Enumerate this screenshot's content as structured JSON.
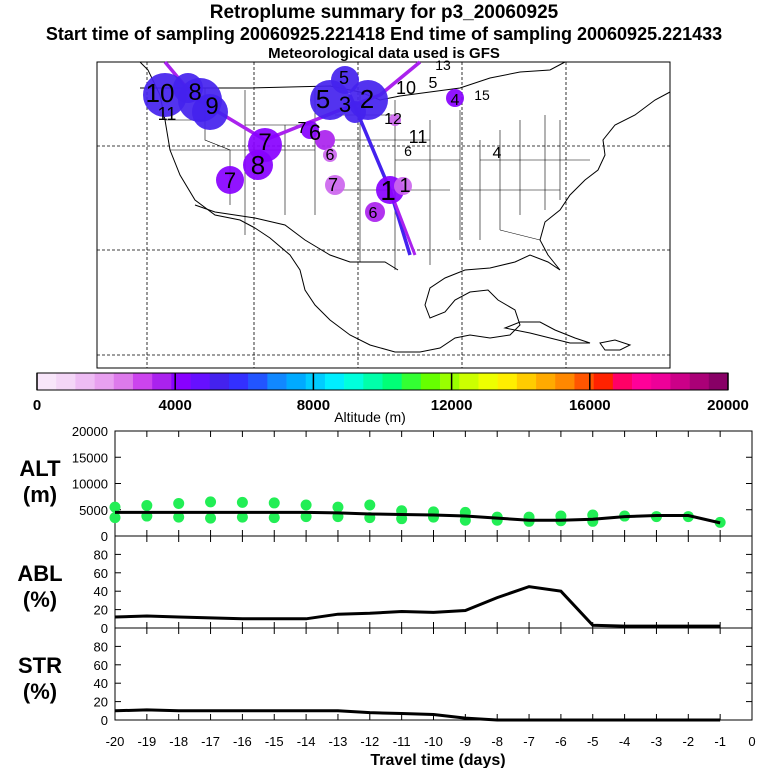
{
  "header": {
    "title": "Retroplume summary for p3_20060925",
    "sampling": "Start time of sampling 20060925.221418     End time of sampling 20060925.221433",
    "met": "Meteorological data used is GFS"
  },
  "colors": {
    "plume_purple": "#8800ff",
    "plume_blue": "#4422ee",
    "plume_violet": "#aa22ee",
    "plume_light": "#cc66ee",
    "alt_dots": "#22ee55",
    "line": "#000000"
  },
  "map": {
    "labels": [
      {
        "t": "10"
      },
      {
        "t": "8"
      },
      {
        "t": "9"
      },
      {
        "t": "11"
      },
      {
        "t": "7"
      },
      {
        "t": "6"
      },
      {
        "t": "8"
      },
      {
        "t": "7"
      },
      {
        "t": "7"
      },
      {
        "t": "6"
      },
      {
        "t": "7"
      },
      {
        "t": "5"
      },
      {
        "t": "5"
      },
      {
        "t": "3"
      },
      {
        "t": "2"
      },
      {
        "t": "10"
      },
      {
        "t": "5"
      },
      {
        "t": "13"
      },
      {
        "t": "4"
      },
      {
        "t": "1"
      },
      {
        "t": "12"
      },
      {
        "t": "11"
      },
      {
        "t": "6"
      },
      {
        "t": "4"
      },
      {
        "t": "1"
      },
      {
        "t": "15"
      },
      {
        "t": "6"
      }
    ]
  },
  "colorbar": {
    "ticks": [
      "0",
      "4000",
      "8000",
      "12000",
      "16000",
      "20000"
    ],
    "label": "Altitude (m)"
  },
  "chart_data": [
    {
      "type": "line",
      "name": "ALT",
      "ylabel": "ALT\n(m)",
      "ylim": [
        0,
        20000
      ],
      "yticks": [
        "0",
        "5000",
        "10000",
        "15000",
        "20000"
      ],
      "x": [
        -20,
        -19,
        -18,
        -17,
        -16,
        -15,
        -14,
        -13,
        -12,
        -11,
        -10,
        -9,
        -8,
        -7,
        -6,
        -5,
        -4,
        -3,
        -2,
        -1
      ],
      "values": [
        4500,
        4500,
        4500,
        4500,
        4500,
        4500,
        4500,
        4400,
        4200,
        4100,
        4000,
        3800,
        3400,
        3000,
        3000,
        3200,
        3700,
        3900,
        3900,
        2500
      ],
      "dots": [
        [
          -20,
          3500
        ],
        [
          -20,
          5500
        ],
        [
          -19,
          3800
        ],
        [
          -19,
          5800
        ],
        [
          -18,
          3600
        ],
        [
          -18,
          6200
        ],
        [
          -17,
          3400
        ],
        [
          -17,
          6500
        ],
        [
          -16,
          3600
        ],
        [
          -16,
          6400
        ],
        [
          -15,
          3500
        ],
        [
          -15,
          6300
        ],
        [
          -14,
          3700
        ],
        [
          -14,
          5900
        ],
        [
          -13,
          3700
        ],
        [
          -13,
          5500
        ],
        [
          -12,
          3500
        ],
        [
          -12,
          5900
        ],
        [
          -11,
          3300
        ],
        [
          -11,
          4800
        ],
        [
          -10,
          3600
        ],
        [
          -10,
          4600
        ],
        [
          -9,
          3000
        ],
        [
          -9,
          4500
        ],
        [
          -8,
          3000
        ],
        [
          -8,
          3600
        ],
        [
          -7,
          2800
        ],
        [
          -7,
          3600
        ],
        [
          -6,
          2900
        ],
        [
          -6,
          3800
        ],
        [
          -5,
          2800
        ],
        [
          -5,
          4000
        ],
        [
          -4,
          3800
        ],
        [
          -3,
          3700
        ],
        [
          -2,
          3700
        ],
        [
          -1,
          2600
        ]
      ]
    },
    {
      "type": "line",
      "name": "ABL",
      "ylabel": "ABL\n(%)",
      "ylim": [
        0,
        100
      ],
      "yticks": [
        "0",
        "20",
        "40",
        "60",
        "80"
      ],
      "x": [
        -20,
        -19,
        -18,
        -17,
        -16,
        -15,
        -14,
        -13,
        -12,
        -11,
        -10,
        -9,
        -8,
        -7,
        -6,
        -5,
        -4,
        -3,
        -2,
        -1
      ],
      "values": [
        12,
        13,
        12,
        11,
        10,
        10,
        10,
        15,
        16,
        18,
        17,
        19,
        33,
        45,
        40,
        3,
        2,
        2,
        2,
        2
      ]
    },
    {
      "type": "line",
      "name": "STR",
      "ylabel": "STR\n(%)",
      "ylim": [
        0,
        100
      ],
      "yticks": [
        "0",
        "20",
        "40",
        "60",
        "80"
      ],
      "x": [
        -20,
        -19,
        -18,
        -17,
        -16,
        -15,
        -14,
        -13,
        -12,
        -11,
        -10,
        -9,
        -8,
        -7,
        -6,
        -5,
        -4,
        -3,
        -2,
        -1
      ],
      "values": [
        10,
        11,
        10,
        10,
        10,
        10,
        10,
        10,
        8,
        7,
        6,
        2,
        0,
        0,
        0,
        0,
        0,
        0,
        0,
        0
      ]
    }
  ],
  "xaxis": {
    "ticks": [
      "-20",
      "-19",
      "-18",
      "-17",
      "-16",
      "-15",
      "-14",
      "-13",
      "-12",
      "-11",
      "-10",
      "-9",
      "-8",
      "-7",
      "-6",
      "-5",
      "-4",
      "-3",
      "-2",
      "-1",
      "0"
    ],
    "label": "Travel time (days)"
  }
}
